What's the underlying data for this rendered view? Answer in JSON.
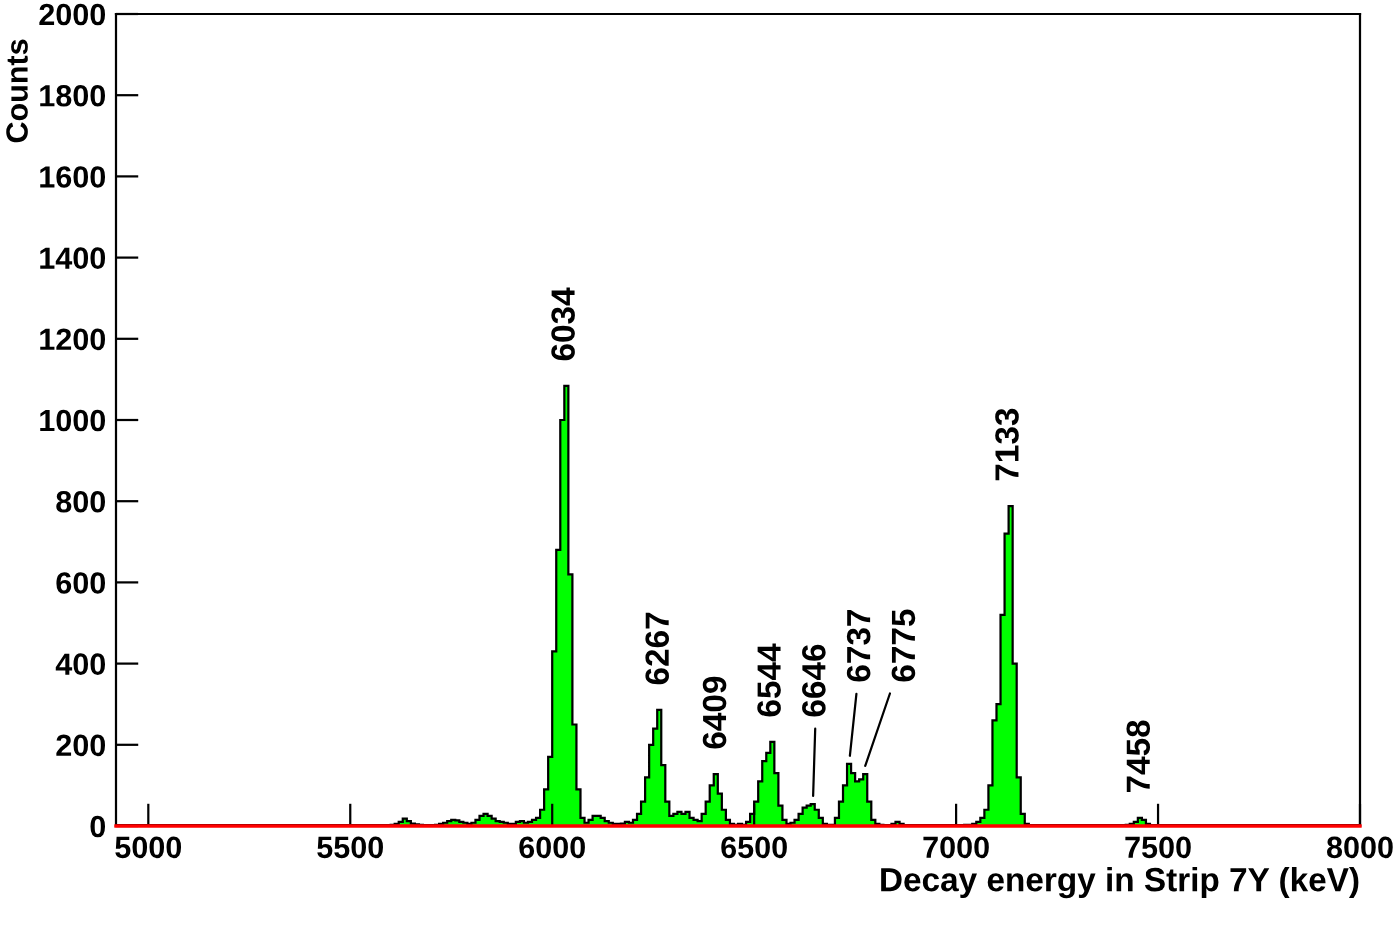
{
  "chart_data": {
    "type": "histogram",
    "xlabel": "Decay energy in Strip 7Y (keV)",
    "ylabel": "Counts",
    "bins": [
      4920,
      5600,
      5610,
      5620,
      5630,
      5640,
      5650,
      5660,
      5670,
      5680,
      5690,
      5700,
      5710,
      5720,
      5730,
      5740,
      5750,
      5760,
      5770,
      5780,
      5790,
      5800,
      5810,
      5820,
      5830,
      5840,
      5850,
      5860,
      5870,
      5880,
      5890,
      5900,
      5910,
      5920,
      5930,
      5940,
      5950,
      5960,
      5970,
      5980,
      5990,
      6000,
      6010,
      6020,
      6030,
      6040,
      6050,
      6060,
      6070,
      6080,
      6090,
      6100,
      6110,
      6120,
      6130,
      6140,
      6150,
      6160,
      6170,
      6180,
      6190,
      6200,
      6210,
      6220,
      6230,
      6240,
      6250,
      6260,
      6270,
      6280,
      6290,
      6300,
      6310,
      6320,
      6330,
      6340,
      6350,
      6360,
      6370,
      6380,
      6390,
      6400,
      6410,
      6420,
      6430,
      6440,
      6450,
      6460,
      6470,
      6480,
      6490,
      6500,
      6510,
      6520,
      6530,
      6540,
      6550,
      6560,
      6570,
      6580,
      6590,
      6600,
      6610,
      6620,
      6630,
      6640,
      6650,
      6660,
      6670,
      6680,
      6690,
      6700,
      6710,
      6720,
      6730,
      6740,
      6750,
      6760,
      6770,
      6780,
      6790,
      6800,
      6810,
      6820,
      6830,
      6840,
      6850,
      6860,
      6870,
      6880,
      6890,
      7000,
      7010,
      7020,
      7030,
      7040,
      7050,
      7060,
      7070,
      7080,
      7090,
      7100,
      7110,
      7120,
      7130,
      7140,
      7150,
      7160,
      7170,
      7180,
      7190,
      7400,
      7410,
      7420,
      7430,
      7440,
      7450,
      7460,
      7470,
      7480,
      7490,
      8000
    ],
    "values": [
      2,
      3,
      5,
      10,
      18,
      12,
      6,
      4,
      3,
      2,
      2,
      2,
      3,
      5,
      8,
      12,
      15,
      14,
      10,
      8,
      5,
      8,
      15,
      25,
      30,
      25,
      18,
      12,
      10,
      8,
      5,
      5,
      10,
      12,
      8,
      10,
      15,
      20,
      40,
      90,
      170,
      430,
      680,
      1000,
      1084,
      620,
      250,
      90,
      20,
      8,
      15,
      25,
      25,
      20,
      12,
      8,
      5,
      5,
      6,
      10,
      8,
      15,
      30,
      60,
      120,
      200,
      240,
      286,
      150,
      60,
      25,
      30,
      35,
      30,
      35,
      20,
      15,
      12,
      30,
      60,
      100,
      128,
      80,
      40,
      15,
      5,
      3,
      5,
      3,
      10,
      30,
      60,
      110,
      160,
      180,
      207,
      130,
      50,
      15,
      5,
      8,
      15,
      30,
      45,
      50,
      54,
      40,
      20,
      5,
      3,
      3,
      20,
      60,
      100,
      153,
      130,
      110,
      115,
      128,
      60,
      15,
      5,
      3,
      2,
      2,
      5,
      10,
      5,
      2,
      2,
      2,
      2,
      2,
      3,
      3,
      5,
      10,
      20,
      40,
      100,
      260,
      300,
      520,
      720,
      788,
      400,
      120,
      30,
      5,
      2,
      2,
      2,
      2,
      3,
      5,
      10,
      20,
      15,
      5,
      2,
      2
    ],
    "color": "#00ff00",
    "xlim": [
      4920,
      8000
    ],
    "ylim": [
      0,
      2000
    ],
    "xticks": [
      5000,
      5500,
      6000,
      6500,
      7000,
      7500,
      8000
    ],
    "yticks": [
      0,
      200,
      400,
      600,
      800,
      1000,
      1200,
      1400,
      1600,
      1800,
      2000
    ],
    "ref_lines": [
      {
        "axis": "y",
        "value": 0,
        "color": "#ff0000"
      }
    ],
    "annotations": [
      {
        "text": "6034",
        "x": 6034,
        "y": 1084
      },
      {
        "text": "6267",
        "x": 6267,
        "y": 286
      },
      {
        "text": "6409",
        "x": 6409,
        "y": 128
      },
      {
        "text": "6544",
        "x": 6544,
        "y": 207
      },
      {
        "text": "6646",
        "x": 6646,
        "y": 54
      },
      {
        "text": "6737",
        "x": 6737,
        "y": 153
      },
      {
        "text": "6775",
        "x": 6775,
        "y": 128
      },
      {
        "text": "7133",
        "x": 7133,
        "y": 788
      },
      {
        "text": "7458",
        "x": 7458,
        "y": 20
      }
    ],
    "grid": false,
    "legend": false
  }
}
